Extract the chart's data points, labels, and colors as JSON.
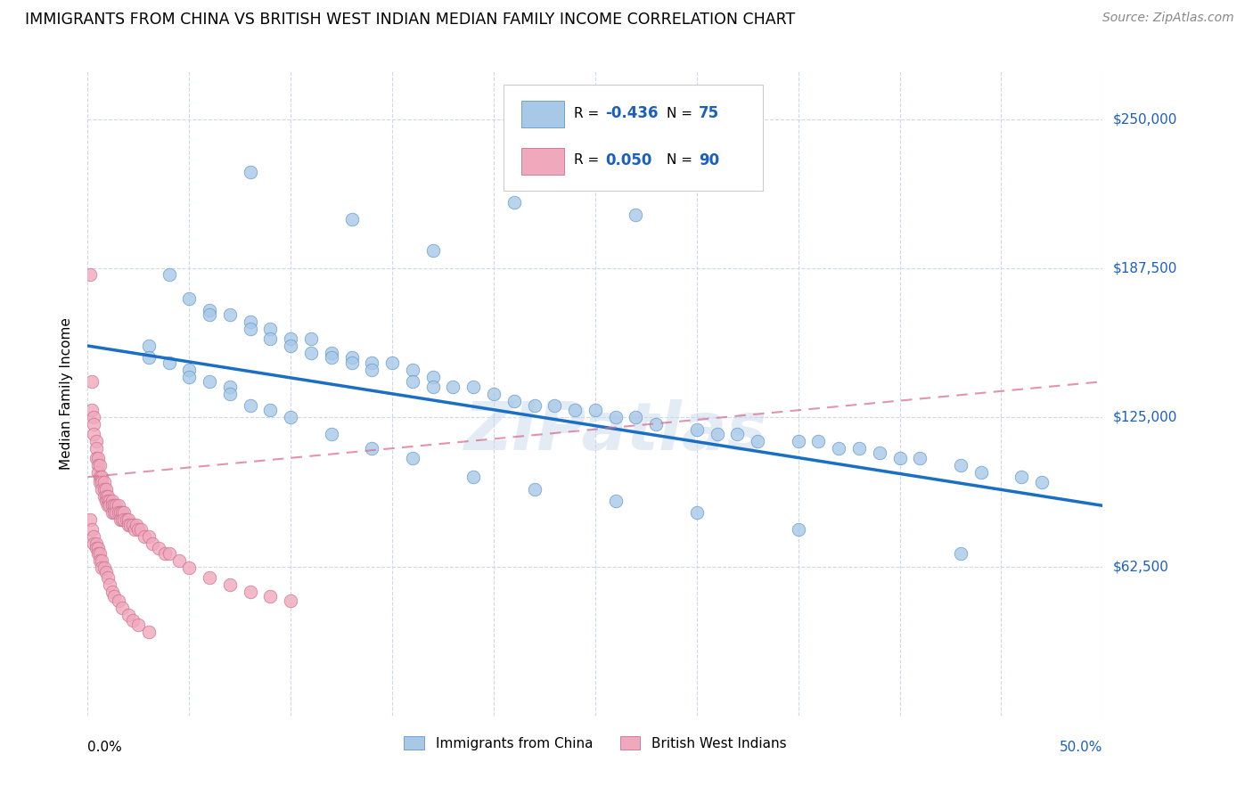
{
  "title": "IMMIGRANTS FROM CHINA VS BRITISH WEST INDIAN MEDIAN FAMILY INCOME CORRELATION CHART",
  "source": "Source: ZipAtlas.com",
  "ylabel": "Median Family Income",
  "yticks": [
    62500,
    125000,
    187500,
    250000
  ],
  "ytick_labels": [
    "$62,500",
    "$125,000",
    "$187,500",
    "$250,000"
  ],
  "legend_label_china": "Immigrants from China",
  "legend_label_bwi": "British West Indians",
  "color_china": "#a8c8e8",
  "color_bwi": "#f0a8bc",
  "color_china_line": "#1a6fc4",
  "color_bwi_line": "#d87090",
  "color_blue_text": "#1a5fbe",
  "watermark": "ZIPatlas",
  "china_line_x0": 0.0,
  "china_line_y0": 155000,
  "china_line_x1": 0.5,
  "china_line_y1": 88000,
  "bwi_line_x0": 0.0,
  "bwi_line_y0": 100000,
  "bwi_line_x1": 0.5,
  "bwi_line_y1": 140000,
  "china_x": [
    0.08,
    0.13,
    0.17,
    0.21,
    0.27,
    0.04,
    0.05,
    0.06,
    0.06,
    0.07,
    0.08,
    0.08,
    0.09,
    0.09,
    0.1,
    0.1,
    0.11,
    0.11,
    0.12,
    0.12,
    0.13,
    0.13,
    0.14,
    0.14,
    0.15,
    0.16,
    0.16,
    0.17,
    0.17,
    0.18,
    0.19,
    0.2,
    0.21,
    0.22,
    0.23,
    0.24,
    0.25,
    0.26,
    0.27,
    0.28,
    0.3,
    0.31,
    0.32,
    0.33,
    0.35,
    0.36,
    0.37,
    0.38,
    0.39,
    0.4,
    0.41,
    0.43,
    0.44,
    0.46,
    0.47,
    0.03,
    0.03,
    0.04,
    0.05,
    0.05,
    0.06,
    0.07,
    0.07,
    0.08,
    0.09,
    0.1,
    0.12,
    0.14,
    0.16,
    0.19,
    0.22,
    0.26,
    0.3,
    0.35,
    0.43
  ],
  "china_y": [
    228000,
    208000,
    195000,
    215000,
    210000,
    185000,
    175000,
    170000,
    168000,
    168000,
    165000,
    162000,
    162000,
    158000,
    158000,
    155000,
    158000,
    152000,
    152000,
    150000,
    150000,
    148000,
    148000,
    145000,
    148000,
    145000,
    140000,
    142000,
    138000,
    138000,
    138000,
    135000,
    132000,
    130000,
    130000,
    128000,
    128000,
    125000,
    125000,
    122000,
    120000,
    118000,
    118000,
    115000,
    115000,
    115000,
    112000,
    112000,
    110000,
    108000,
    108000,
    105000,
    102000,
    100000,
    98000,
    155000,
    150000,
    148000,
    145000,
    142000,
    140000,
    138000,
    135000,
    130000,
    128000,
    125000,
    118000,
    112000,
    108000,
    100000,
    95000,
    90000,
    85000,
    78000,
    68000
  ],
  "bwi_x": [
    0.001,
    0.002,
    0.002,
    0.003,
    0.003,
    0.003,
    0.004,
    0.004,
    0.004,
    0.005,
    0.005,
    0.005,
    0.006,
    0.006,
    0.006,
    0.007,
    0.007,
    0.007,
    0.008,
    0.008,
    0.008,
    0.009,
    0.009,
    0.009,
    0.01,
    0.01,
    0.01,
    0.011,
    0.011,
    0.012,
    0.012,
    0.012,
    0.013,
    0.013,
    0.014,
    0.014,
    0.015,
    0.015,
    0.016,
    0.016,
    0.017,
    0.017,
    0.018,
    0.018,
    0.019,
    0.02,
    0.02,
    0.021,
    0.022,
    0.023,
    0.024,
    0.025,
    0.026,
    0.028,
    0.03,
    0.032,
    0.035,
    0.038,
    0.04,
    0.045,
    0.05,
    0.06,
    0.07,
    0.08,
    0.09,
    0.1,
    0.001,
    0.002,
    0.003,
    0.003,
    0.004,
    0.004,
    0.005,
    0.005,
    0.006,
    0.006,
    0.007,
    0.007,
    0.008,
    0.009,
    0.01,
    0.011,
    0.012,
    0.013,
    0.015,
    0.017,
    0.02,
    0.022,
    0.025,
    0.03
  ],
  "bwi_y": [
    185000,
    140000,
    128000,
    125000,
    122000,
    118000,
    115000,
    112000,
    108000,
    108000,
    105000,
    102000,
    105000,
    100000,
    98000,
    100000,
    98000,
    95000,
    98000,
    95000,
    92000,
    95000,
    92000,
    90000,
    92000,
    90000,
    88000,
    90000,
    88000,
    90000,
    88000,
    85000,
    88000,
    85000,
    88000,
    85000,
    88000,
    85000,
    85000,
    82000,
    85000,
    82000,
    85000,
    82000,
    82000,
    82000,
    80000,
    80000,
    80000,
    78000,
    80000,
    78000,
    78000,
    75000,
    75000,
    72000,
    70000,
    68000,
    68000,
    65000,
    62000,
    58000,
    55000,
    52000,
    50000,
    48000,
    82000,
    78000,
    75000,
    72000,
    72000,
    70000,
    70000,
    68000,
    68000,
    65000,
    65000,
    62000,
    62000,
    60000,
    58000,
    55000,
    52000,
    50000,
    48000,
    45000,
    42000,
    40000,
    38000,
    35000
  ],
  "xlim": [
    0.0,
    0.5
  ],
  "ylim": [
    0,
    270000
  ],
  "figsize": [
    14.06,
    8.92
  ],
  "dpi": 100
}
